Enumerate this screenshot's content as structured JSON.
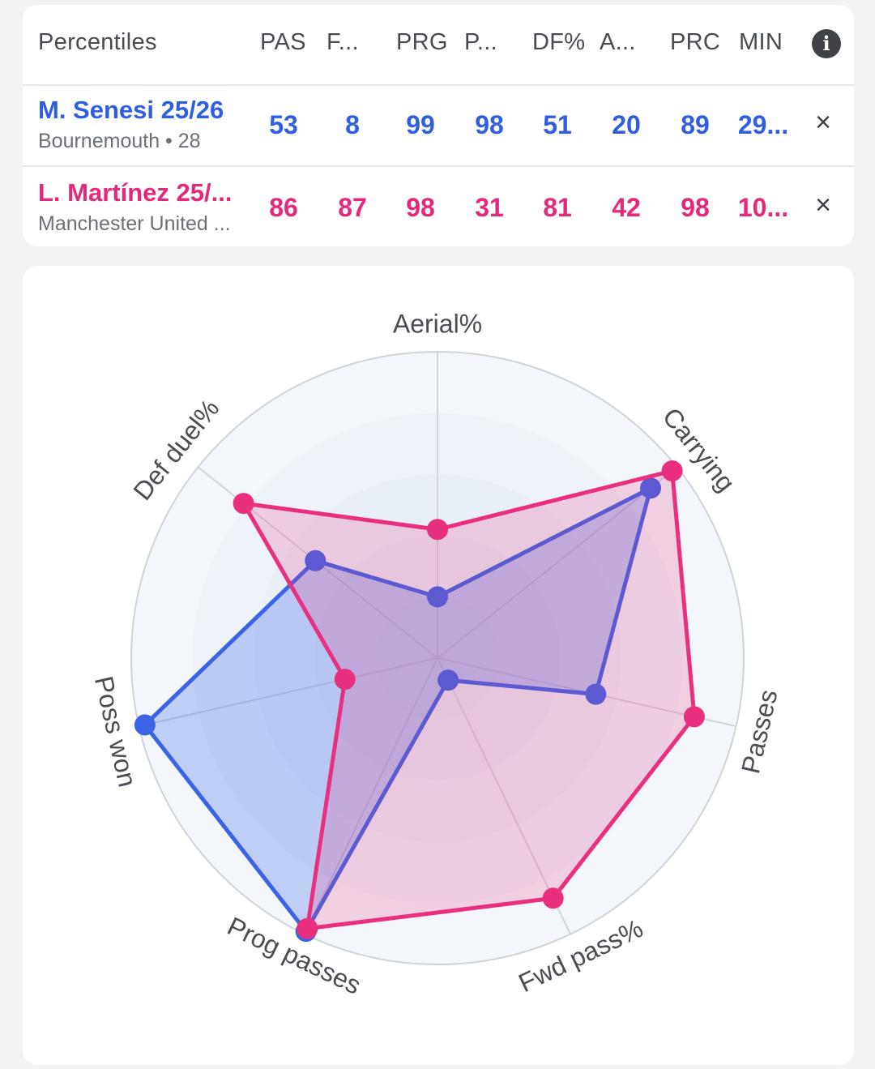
{
  "table": {
    "title": "Percentiles",
    "columns": [
      "PAS",
      "F...",
      "PRG",
      "P...",
      "DF%",
      "A...",
      "PRC",
      "MIN"
    ],
    "players": [
      {
        "name": "M. Senesi 25/26",
        "meta": "Bournemouth • 28",
        "values": [
          "53",
          "8",
          "99",
          "98",
          "51",
          "20",
          "89",
          "29..."
        ],
        "close": "×"
      },
      {
        "name": "L. Martínez 25/...",
        "meta": "Manchester United ...",
        "values": [
          "86",
          "87",
          "98",
          "31",
          "81",
          "42",
          "98",
          "10..."
        ],
        "close": "×"
      }
    ]
  },
  "chart_data": {
    "type": "radar",
    "axes": [
      "Aerial%",
      "Carrying",
      "Passes",
      "Fwd pass%",
      "Prog passes",
      "Poss won",
      "Def duel%"
    ],
    "rlim": [
      0,
      100
    ],
    "rings": 5,
    "series": [
      {
        "name": "M. Senesi 25/26",
        "color": "#3b63e6",
        "values": [
          20,
          89,
          53,
          8,
          99,
          98,
          51
        ]
      },
      {
        "name": "L. Martínez 25/...",
        "color": "#e8307f",
        "values": [
          42,
          98,
          86,
          87,
          98,
          31,
          81
        ]
      }
    ]
  },
  "colors": {
    "blue": "#2f5fe0",
    "pink": "#e4297c"
  }
}
